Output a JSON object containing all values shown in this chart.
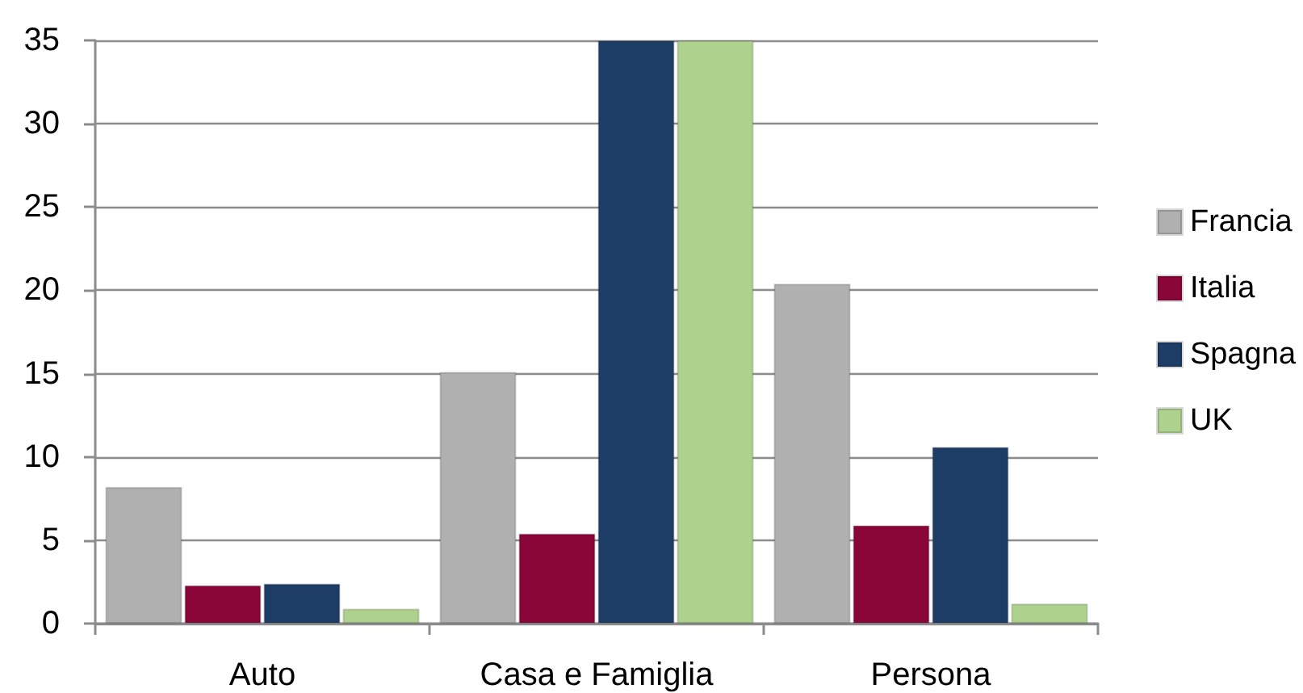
{
  "chart_data": {
    "type": "bar",
    "categories": [
      "Auto",
      "Casa e Famiglia",
      "Persona"
    ],
    "series": [
      {
        "name": "Francia",
        "color": "#b0b0b0",
        "values": [
          8.2,
          15.1,
          20.4
        ]
      },
      {
        "name": "Italia",
        "color": "#8a0638",
        "values": [
          2.3,
          5.4,
          5.9
        ]
      },
      {
        "name": "Spagna",
        "color": "#1e3d66",
        "values": [
          2.4,
          35,
          10.6
        ]
      },
      {
        "name": "UK",
        "color": "#aed28e",
        "values": [
          0.9,
          35,
          1.2
        ]
      }
    ],
    "ylim": [
      0,
      35
    ],
    "yticks": [
      0,
      5,
      10,
      15,
      20,
      25,
      30,
      35
    ],
    "grid": "y",
    "legend": "right"
  }
}
